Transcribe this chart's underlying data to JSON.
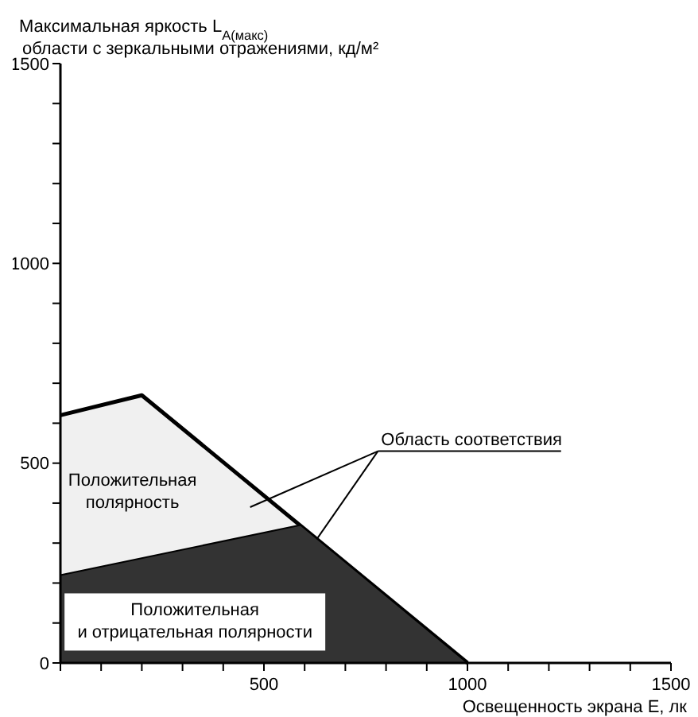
{
  "chart_data": {
    "type": "area",
    "ylabel": "Максимальная яркость L$_{A(макс)}$\nобласти с зеркальными отражениями,  кд/м²",
    "xlabel": "Освещенность экрана E, лк",
    "xlim": [
      0,
      1500
    ],
    "ylim": [
      0,
      1500
    ],
    "xticks": [
      {
        "value": 0,
        "label": null
      },
      {
        "value": 100,
        "label": null
      },
      {
        "value": 200,
        "label": null
      },
      {
        "value": 300,
        "label": null
      },
      {
        "value": 400,
        "label": null
      },
      500,
      {
        "value": 600,
        "label": null
      },
      {
        "value": 700,
        "label": null
      },
      {
        "value": 800,
        "label": null
      },
      {
        "value": 900,
        "label": null
      },
      1000,
      {
        "value": 1100,
        "label": null
      },
      {
        "value": 1200,
        "label": null
      },
      {
        "value": 1300,
        "label": null
      },
      {
        "value": 1400,
        "label": null
      },
      1500
    ],
    "yticks": [
      0,
      {
        "value": 100,
        "label": null
      },
      {
        "value": 200,
        "label": null
      },
      {
        "value": 300,
        "label": null
      },
      {
        "value": 400,
        "label": null
      },
      500,
      {
        "value": 600,
        "label": null
      },
      {
        "value": 700,
        "label": null
      },
      {
        "value": 800,
        "label": null
      },
      {
        "value": 900,
        "label": null
      },
      1000,
      {
        "value": 1100,
        "label": null
      },
      {
        "value": 1200,
        "label": null
      },
      {
        "value": 1300,
        "label": null
      },
      {
        "value": 1400,
        "label": null
      },
      1500
    ],
    "series": [
      {
        "color": "#f0f0f0",
        "x": [
          0,
          200,
          1000
        ],
        "values": [
          620,
          670,
          0
        ]
      },
      {
        "color": "#333333",
        "x": [
          0,
          590,
          1000
        ],
        "values": [
          220,
          345,
          0
        ]
      }
    ],
    "annotations": [
      "Положительная\nполярность",
      "Положительная\nи отрицательная полярности",
      {
        "text": "Область соответствия",
        "x": 630,
        "y": 310
      }
    ],
    "grid": false
  }
}
